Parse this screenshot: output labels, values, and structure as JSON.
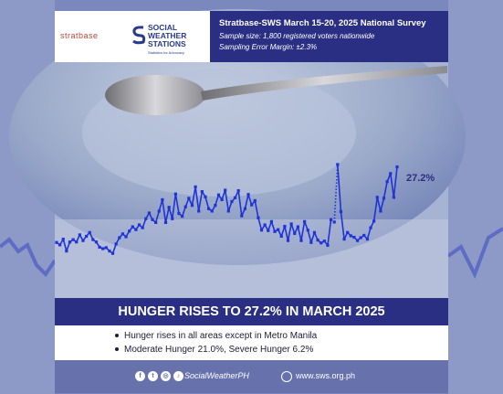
{
  "logos": {
    "stratbase": "stratbase",
    "sws_name": "SOCIAL WEATHER STATIONS",
    "sws_tagline": "Statistics for Advocacy"
  },
  "survey": {
    "title": "Stratbase-SWS March 15-20, 2025 National Survey",
    "sample": "Sample size: 1,800 registered voters nationwide",
    "margin": "Sampling Error Margin: ±2.3%"
  },
  "headline": "HUNGER RISES TO 27.2% IN MARCH 2025",
  "bullets": [
    "Hunger rises in all areas except in Metro Manila",
    "Moderate Hunger 21.0%, Severe Hunger 6.2%"
  ],
  "footer": {
    "handle": "SocialWeatherPH",
    "url": "www.sws.org.ph"
  },
  "colors": {
    "navy": "#2b2f83",
    "line": "#1f33d6",
    "footer": "#6772ad"
  },
  "chart_data": {
    "type": "line",
    "title": "",
    "xlabel": "",
    "ylabel": "",
    "end_label": "27.2%",
    "values": [
      11.3,
      10.8,
      12.0,
      9.5,
      11.4,
      11.9,
      11.4,
      12.9,
      11.7,
      12.6,
      13.4,
      11.9,
      11.4,
      10.3,
      10.0,
      10.2,
      9.5,
      9.0,
      11.0,
      12.3,
      13.1,
      12.5,
      13.7,
      14.6,
      14.0,
      15.0,
      14.4,
      16.3,
      17.5,
      16.1,
      15.5,
      17.9,
      20.3,
      15.5,
      18.7,
      16.3,
      21.5,
      17.4,
      16.8,
      18.8,
      20.6,
      19.1,
      23.0,
      17.9,
      22.0,
      20.9,
      18.4,
      17.9,
      19.1,
      21.3,
      20.3,
      22.3,
      17.9,
      19.9,
      20.7,
      22.2,
      16.9,
      18.4,
      21.4,
      19.2,
      20.1,
      16.5,
      13.9,
      15.0,
      13.8,
      15.7,
      13.6,
      14.0,
      12.6,
      14.7,
      11.7,
      15.2,
      13.2,
      14.6,
      11.7,
      15.7,
      13.9,
      11.3,
      13.4,
      11.8,
      11.2,
      11.6,
      10.7,
      16.1,
      15.6,
      27.7,
      17.8,
      12.0,
      13.4,
      12.7,
      12.4,
      11.7,
      12.3,
      12.8,
      12.0,
      14.4,
      15.8,
      20.8,
      17.9,
      20.6,
      24.1,
      25.8,
      20.8,
      27.2
    ],
    "ylim": [
      5,
      30
    ],
    "marker": "square",
    "dotted_segments": [
      [
        83,
        85
      ]
    ]
  }
}
